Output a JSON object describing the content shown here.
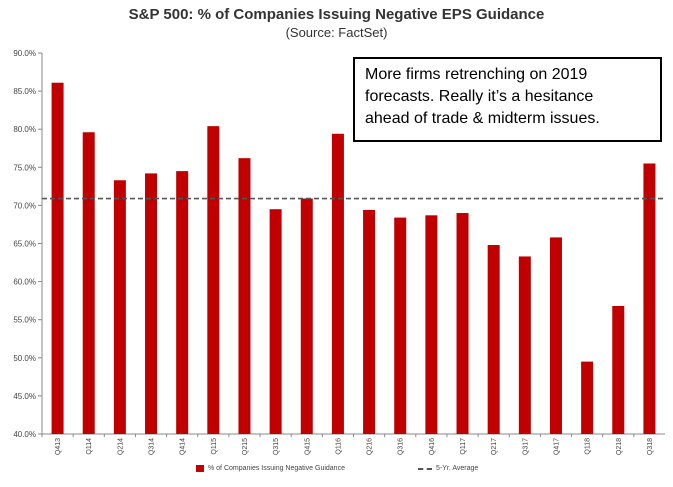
{
  "chart_data": {
    "type": "bar",
    "title": "S&P 500: % of Companies Issuing Negative EPS Guidance",
    "subtitle": "(Source: FactSet)",
    "xlabel": "",
    "ylabel": "",
    "categories": [
      "Q413",
      "Q114",
      "Q214",
      "Q314",
      "Q414",
      "Q115",
      "Q215",
      "Q315",
      "Q415",
      "Q116",
      "Q216",
      "Q316",
      "Q416",
      "Q117",
      "Q217",
      "Q317",
      "Q417",
      "Q118",
      "Q218",
      "Q318"
    ],
    "series": [
      {
        "name": "% of Companies Issuing Negative Guidance",
        "values": [
          86.1,
          79.6,
          73.3,
          74.2,
          74.5,
          80.4,
          76.2,
          69.5,
          70.9,
          79.4,
          69.4,
          68.4,
          68.7,
          69.0,
          64.8,
          63.3,
          65.8,
          49.5,
          56.8,
          75.5
        ],
        "color": "#c00000"
      }
    ],
    "reference_lines": [
      {
        "name": "5-Yr. Average",
        "value": 70.9,
        "style": "dashed",
        "color": "#555555"
      }
    ],
    "yticks": [
      "40.0%",
      "45.0%",
      "50.0%",
      "55.0%",
      "60.0%",
      "65.0%",
      "70.0%",
      "75.0%",
      "80.0%",
      "85.0%",
      "90.0%"
    ],
    "ylim": [
      40,
      90
    ],
    "grid": false,
    "legend_position": "bottom",
    "annotation": {
      "lines": [
        "More firms retrenching on 2019",
        "forecasts. Really it’s a hesitance",
        "ahead of trade & midterm issues."
      ]
    }
  }
}
